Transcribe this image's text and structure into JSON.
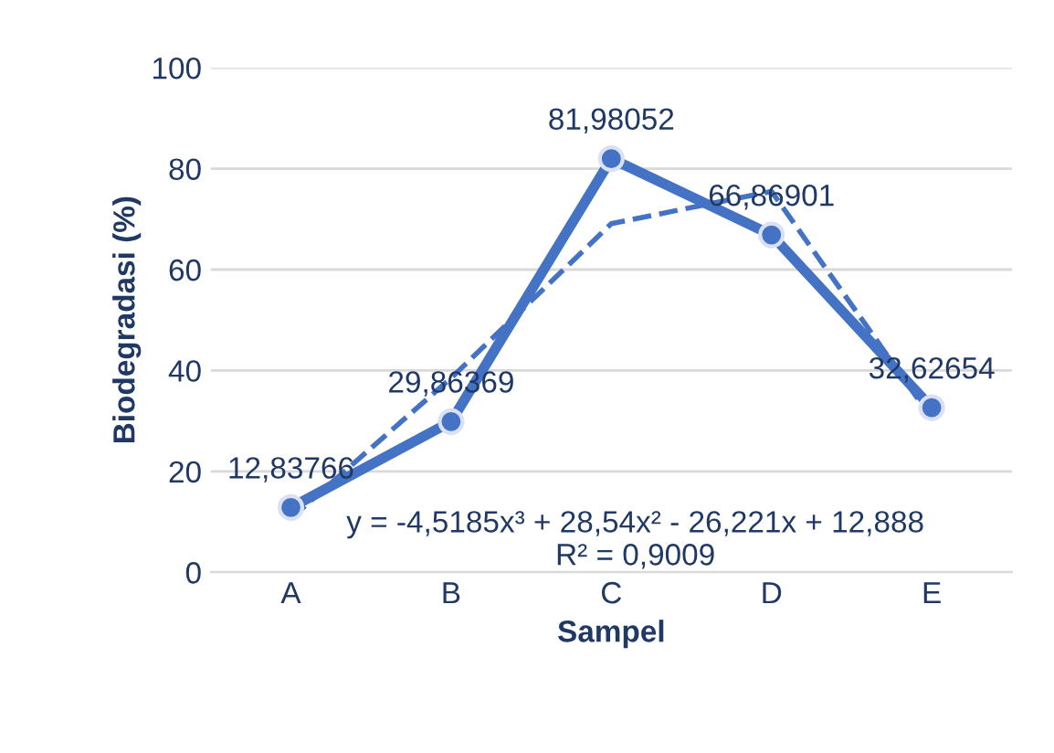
{
  "chart_data": {
    "type": "line",
    "xlabel": "Sampel",
    "ylabel": "Biodegradasi (%)",
    "categories": [
      "A",
      "B",
      "C",
      "D",
      "E"
    ],
    "series": [
      {
        "values": [
          12.83766,
          29.86369,
          81.98052,
          66.86901,
          32.62654
        ],
        "color": "#4472c4",
        "value_labels": [
          "12,83766",
          "29,86369",
          "81,98052",
          "66,86901",
          "32,62654"
        ]
      },
      {
        "type": "line",
        "values": [
          10.7,
          38.5,
          69.1,
          75.5,
          30.5
        ],
        "color": "#4472c4",
        "line_style": "dashed",
        "marker": "none"
      }
    ],
    "annotations": [
      "y = -4,5185x³ + 28,54x² - 26,221x + 12,888",
      "R² = 0,9009"
    ],
    "ylim": [
      0,
      100
    ],
    "yticks": [
      0,
      20,
      40,
      60,
      80,
      100
    ],
    "grid": "y",
    "marker": "circle",
    "line_style": "solid",
    "legend": false
  }
}
